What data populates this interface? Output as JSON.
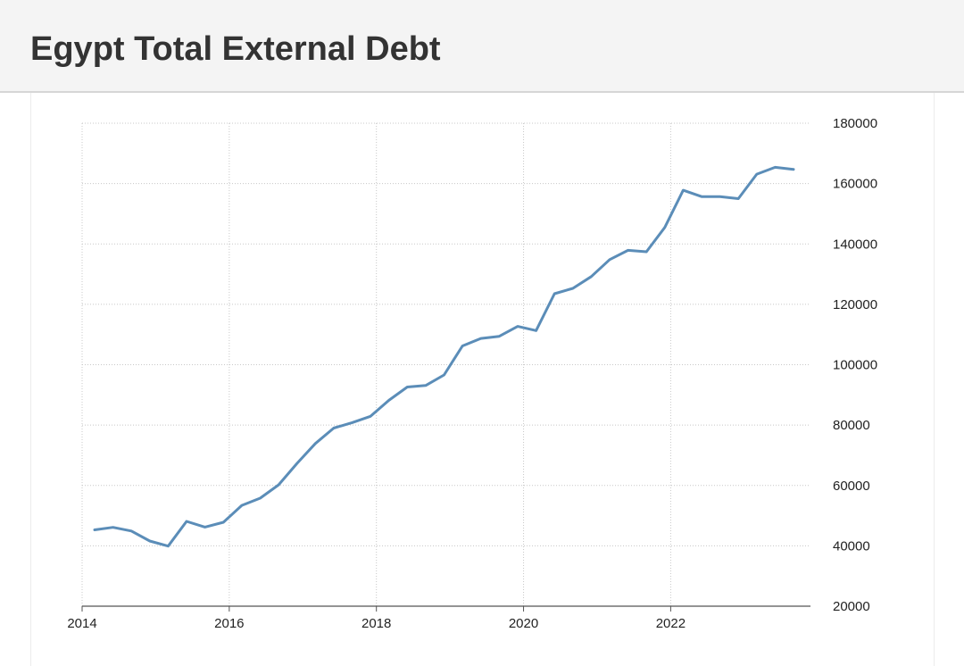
{
  "page": {
    "title": "Egypt Total External Debt"
  },
  "chart_data": {
    "type": "line",
    "title": "Egypt Total External Debt",
    "xlabel": "",
    "ylabel": "",
    "x_ticks": [
      "2014",
      "2016",
      "2018",
      "2020",
      "2022"
    ],
    "y_ticks": [
      "20000",
      "40000",
      "60000",
      "80000",
      "100000",
      "120000",
      "140000",
      "160000",
      "180000"
    ],
    "xlim": [
      2014.0,
      2023.9
    ],
    "ylim": [
      20000,
      180000
    ],
    "y_axis_position": "right",
    "grid": true,
    "line_color": "#5b8db8",
    "series": [
      {
        "x": [
          2014.17,
          2014.42,
          2014.67,
          2014.92,
          2015.17,
          2015.42,
          2015.67,
          2015.92,
          2016.17,
          2016.42,
          2016.67,
          2016.92,
          2017.17,
          2017.42,
          2017.67,
          2017.92,
          2018.17,
          2018.42,
          2018.67,
          2018.92,
          2019.17,
          2019.42,
          2019.67,
          2019.92,
          2020.17,
          2020.42,
          2020.67,
          2020.92,
          2021.17,
          2021.42,
          2021.67,
          2021.92,
          2022.17,
          2022.42,
          2022.67,
          2022.92,
          2023.17,
          2023.42,
          2023.67
        ],
        "values": [
          45300,
          46100,
          44900,
          41600,
          39900,
          48100,
          46200,
          47800,
          53400,
          55800,
          60200,
          67300,
          73900,
          79000,
          80800,
          82900,
          88200,
          92600,
          93100,
          96600,
          106200,
          108700,
          109400,
          112700,
          111300,
          123500,
          125300,
          129200,
          134800,
          137900,
          137400,
          145500,
          157800,
          155700,
          155700,
          155000,
          163100,
          165400,
          164700
        ]
      }
    ]
  }
}
